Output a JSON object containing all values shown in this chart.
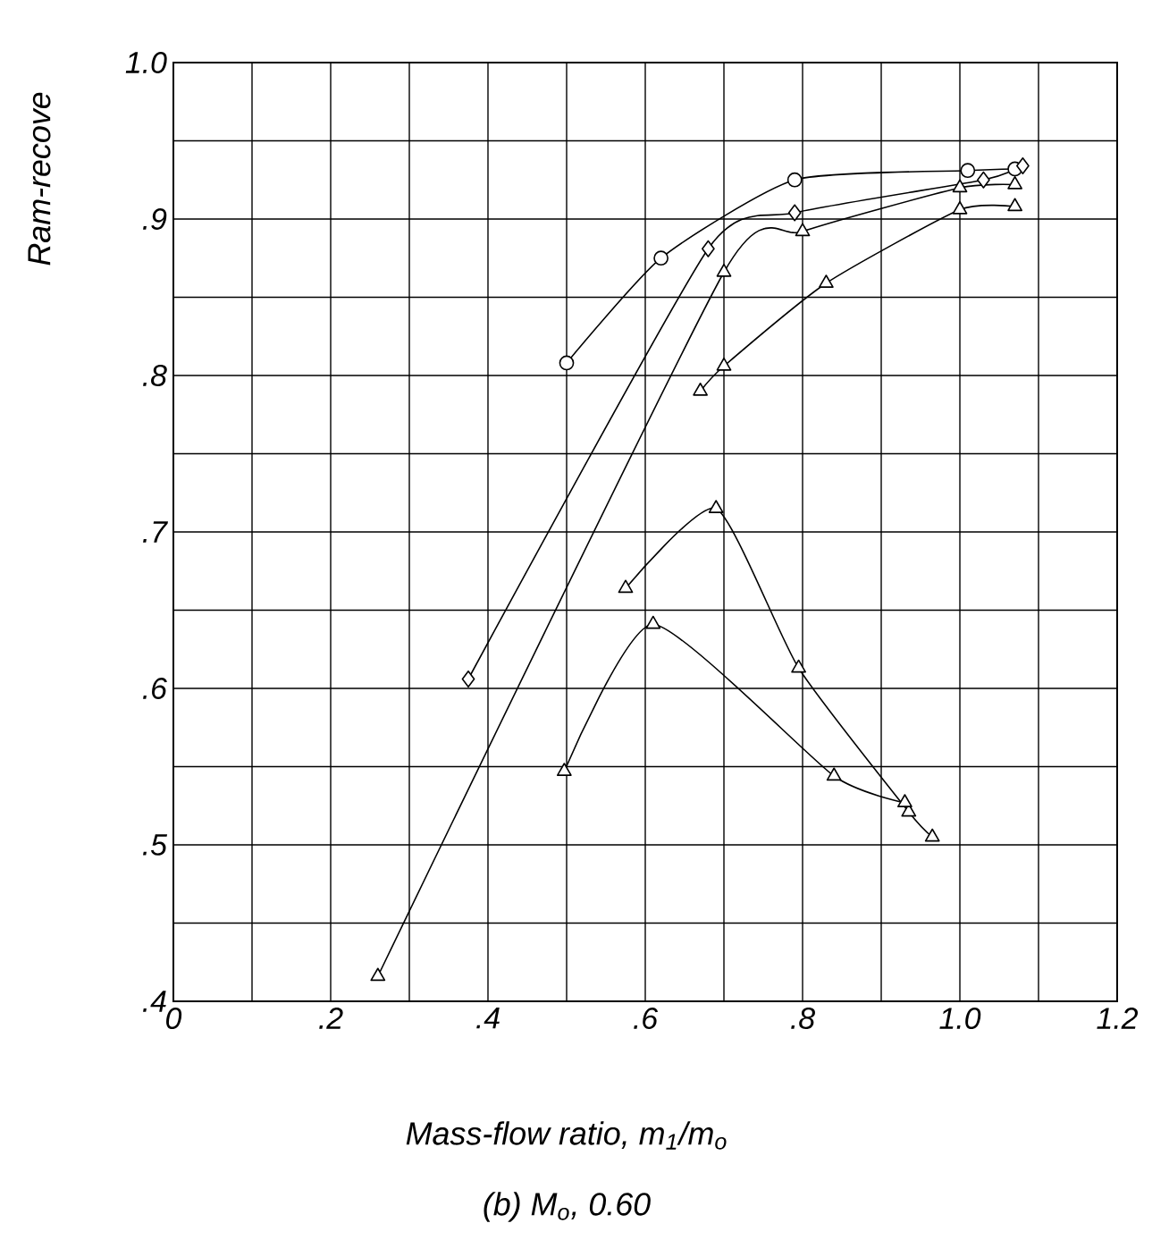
{
  "chart_data": {
    "type": "line",
    "title": "(b) M$_{o}$, 0.60",
    "xlabel": "Mass-flow ratio, m$_{1}$/m$_{o}$",
    "ylabel": "Ram-recove",
    "xlim": [
      0,
      1.2
    ],
    "ylim": [
      0.4,
      1.0
    ],
    "xticks": [
      {
        "value": 0,
        "label": "0"
      },
      {
        "value": 0.1,
        "label": null
      },
      {
        "value": 0.2,
        "label": ".2"
      },
      {
        "value": 0.3,
        "label": null
      },
      {
        "value": 0.4,
        "label": ".4"
      },
      {
        "value": 0.5,
        "label": null
      },
      {
        "value": 0.6,
        "label": ".6"
      },
      {
        "value": 0.7,
        "label": null
      },
      {
        "value": 0.8,
        "label": ".8"
      },
      {
        "value": 0.9,
        "label": null
      },
      {
        "value": 1.0,
        "label": "1.0"
      },
      {
        "value": 1.1,
        "label": null
      },
      {
        "value": 1.2,
        "label": "1.2"
      }
    ],
    "yticks": [
      {
        "value": 0.4,
        "label": ".4"
      },
      {
        "value": 0.45,
        "label": null
      },
      {
        "value": 0.5,
        "label": ".5"
      },
      {
        "value": 0.55,
        "label": null
      },
      {
        "value": 0.6,
        "label": ".6"
      },
      {
        "value": 0.65,
        "label": null
      },
      {
        "value": 0.7,
        "label": ".7"
      },
      {
        "value": 0.75,
        "label": null
      },
      {
        "value": 0.8,
        "label": ".8"
      },
      {
        "value": 0.85,
        "label": null
      },
      {
        "value": 0.9,
        "label": ".9"
      },
      {
        "value": 0.95,
        "label": null
      },
      {
        "value": 1.0,
        "label": "1.0"
      }
    ],
    "grid": true,
    "line_style": "solid",
    "series": [
      {
        "color": "#000000",
        "marker": "circle",
        "x": [
          0.5,
          0.62,
          0.79,
          1.01,
          1.07
        ],
        "values": [
          0.808,
          0.875,
          0.925,
          0.931,
          0.932
        ]
      },
      {
        "color": "#000000",
        "marker": "diamond",
        "x": [
          0.375,
          0.68,
          0.79,
          1.03,
          1.08
        ],
        "values": [
          0.606,
          0.881,
          0.904,
          0.925,
          0.934
        ]
      },
      {
        "color": "#000000",
        "marker": "triangle",
        "x": [
          0.26,
          0.7,
          0.8,
          1.0,
          1.07
        ],
        "values": [
          0.416,
          0.866,
          0.892,
          0.92,
          0.922
        ]
      },
      {
        "color": "#000000",
        "marker": "triangle",
        "x": [
          0.67,
          0.7,
          0.83,
          1.0,
          1.07
        ],
        "values": [
          0.79,
          0.806,
          0.859,
          0.906,
          0.908
        ]
      },
      {
        "color": "#000000",
        "marker": "triangle",
        "x": [
          0.575,
          0.69,
          0.795,
          0.935,
          0.965
        ],
        "values": [
          0.664,
          0.715,
          0.613,
          0.521,
          0.505
        ]
      },
      {
        "color": "#000000",
        "marker": "triangle",
        "x": [
          0.497,
          0.61,
          0.84,
          0.93
        ],
        "values": [
          0.547,
          0.641,
          0.544,
          0.527
        ]
      }
    ]
  }
}
